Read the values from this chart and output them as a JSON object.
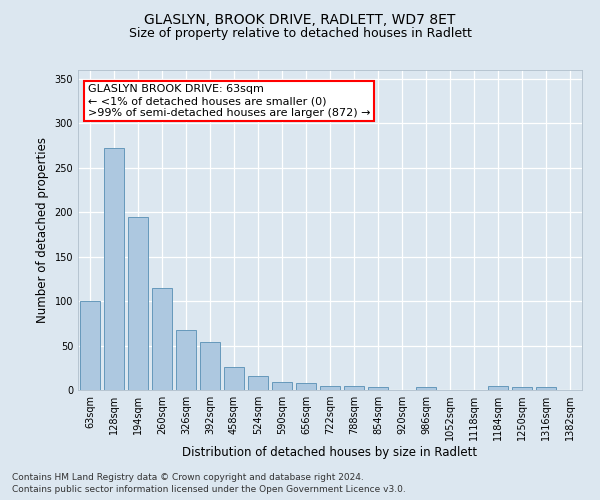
{
  "title": "GLASLYN, BROOK DRIVE, RADLETT, WD7 8ET",
  "subtitle": "Size of property relative to detached houses in Radlett",
  "xlabel": "Distribution of detached houses by size in Radlett",
  "ylabel": "Number of detached properties",
  "categories": [
    "63sqm",
    "128sqm",
    "194sqm",
    "260sqm",
    "326sqm",
    "392sqm",
    "458sqm",
    "524sqm",
    "590sqm",
    "656sqm",
    "722sqm",
    "788sqm",
    "854sqm",
    "920sqm",
    "986sqm",
    "1052sqm",
    "1118sqm",
    "1184sqm",
    "1250sqm",
    "1316sqm",
    "1382sqm"
  ],
  "values": [
    100,
    272,
    195,
    115,
    68,
    54,
    26,
    16,
    9,
    8,
    4,
    5,
    3,
    0,
    3,
    0,
    0,
    4,
    3,
    3,
    0
  ],
  "bar_color": "#adc8e0",
  "bar_edge_color": "#6699bb",
  "background_color": "#dce7f0",
  "grid_color": "#ffffff",
  "fig_background": "#dce7f0",
  "ylim": [
    0,
    360
  ],
  "yticks": [
    0,
    50,
    100,
    150,
    200,
    250,
    300,
    350
  ],
  "annotation_line1": "GLASLYN BROOK DRIVE: 63sqm",
  "annotation_line2": "← <1% of detached houses are smaller (0)",
  "annotation_line3": ">99% of semi-detached houses are larger (872) →",
  "footer_line1": "Contains HM Land Registry data © Crown copyright and database right 2024.",
  "footer_line2": "Contains public sector information licensed under the Open Government Licence v3.0.",
  "title_fontsize": 10,
  "subtitle_fontsize": 9,
  "axis_label_fontsize": 8.5,
  "tick_fontsize": 7,
  "annotation_fontsize": 8,
  "footer_fontsize": 6.5
}
